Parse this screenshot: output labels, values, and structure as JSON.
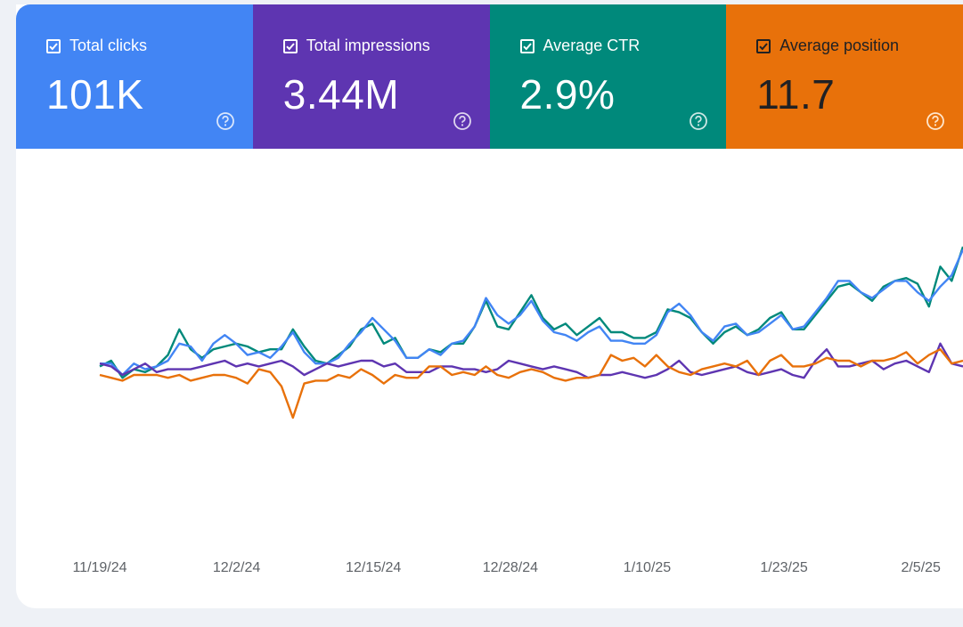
{
  "metrics": [
    {
      "label": "Total clicks",
      "value": "101K",
      "color": "#4285f4",
      "checked": true
    },
    {
      "label": "Total impressions",
      "value": "3.44M",
      "color": "#5e35b1",
      "checked": true
    },
    {
      "label": "Average CTR",
      "value": "2.9%",
      "color": "#00897b",
      "checked": true
    },
    {
      "label": "Average position",
      "value": "11.7",
      "color": "#e8710a",
      "checked": true
    }
  ],
  "chart_data": {
    "type": "line",
    "x_tick_labels": [
      "11/19/24",
      "12/2/24",
      "12/15/24",
      "12/28/24",
      "1/10/25",
      "1/23/25",
      "2/5/25"
    ],
    "x_ticks": [
      "2024-11-19",
      "2024-12-02",
      "2024-12-15",
      "2024-12-28",
      "2025-01-10",
      "2025-01-23",
      "2025-02-05"
    ],
    "x_start": "2024-11-19",
    "x_end": "2025-02-09",
    "grid": false,
    "y_axis_labels_visible": false,
    "series": [
      {
        "color": "#00897b",
        "values_relative": [
          0.58,
          0.6,
          0.54,
          0.57,
          0.56,
          0.58,
          0.62,
          0.71,
          0.64,
          0.61,
          0.64,
          0.65,
          0.66,
          0.65,
          0.63,
          0.64,
          0.64,
          0.71,
          0.65,
          0.6,
          0.59,
          0.62,
          0.65,
          0.71,
          0.73,
          0.66,
          0.68,
          0.61,
          0.61,
          0.64,
          0.63,
          0.66,
          0.66,
          0.72,
          0.81,
          0.72,
          0.71,
          0.77,
          0.83,
          0.75,
          0.71,
          0.73,
          0.69,
          0.72,
          0.75,
          0.7,
          0.7,
          0.68,
          0.68,
          0.7,
          0.78,
          0.77,
          0.75,
          0.7,
          0.66,
          0.7,
          0.72,
          0.69,
          0.71,
          0.75,
          0.77,
          0.71,
          0.71,
          0.76,
          0.81,
          0.86,
          0.87,
          0.84,
          0.81,
          0.86,
          0.88,
          0.89,
          0.87,
          0.79,
          0.93,
          0.88,
          1.0
        ]
      },
      {
        "color": "#4285f4",
        "values_relative": [
          0.59,
          0.59,
          0.55,
          0.59,
          0.57,
          0.58,
          0.6,
          0.66,
          0.65,
          0.6,
          0.66,
          0.69,
          0.66,
          0.62,
          0.63,
          0.61,
          0.65,
          0.7,
          0.63,
          0.59,
          0.59,
          0.61,
          0.66,
          0.7,
          0.75,
          0.71,
          0.67,
          0.61,
          0.61,
          0.64,
          0.62,
          0.66,
          0.67,
          0.72,
          0.82,
          0.76,
          0.73,
          0.76,
          0.81,
          0.74,
          0.7,
          0.69,
          0.67,
          0.7,
          0.72,
          0.67,
          0.67,
          0.66,
          0.66,
          0.69,
          0.77,
          0.8,
          0.76,
          0.7,
          0.67,
          0.72,
          0.73,
          0.69,
          0.7,
          0.73,
          0.76,
          0.71,
          0.72,
          0.77,
          0.82,
          0.88,
          0.88,
          0.84,
          0.82,
          0.85,
          0.88,
          0.88,
          0.84,
          0.81,
          0.86,
          0.9,
          0.99
        ]
      },
      {
        "color": "#5e35b1",
        "values_relative": [
          0.59,
          0.58,
          0.55,
          0.57,
          0.59,
          0.56,
          0.57,
          0.57,
          0.57,
          0.58,
          0.59,
          0.6,
          0.58,
          0.59,
          0.58,
          0.59,
          0.6,
          0.58,
          0.55,
          0.57,
          0.59,
          0.58,
          0.59,
          0.6,
          0.6,
          0.58,
          0.59,
          0.56,
          0.56,
          0.56,
          0.58,
          0.58,
          0.57,
          0.57,
          0.56,
          0.57,
          0.6,
          0.59,
          0.58,
          0.57,
          0.58,
          0.57,
          0.56,
          0.54,
          0.55,
          0.55,
          0.56,
          0.55,
          0.54,
          0.55,
          0.57,
          0.6,
          0.56,
          0.55,
          0.56,
          0.57,
          0.58,
          0.56,
          0.55,
          0.56,
          0.57,
          0.55,
          0.54,
          0.6,
          0.64,
          0.58,
          0.58,
          0.59,
          0.6,
          0.57,
          0.59,
          0.6,
          0.58,
          0.56,
          0.66,
          0.59,
          0.58
        ]
      },
      {
        "color": "#e8710a",
        "values_relative": [
          0.55,
          0.54,
          0.53,
          0.55,
          0.55,
          0.55,
          0.54,
          0.55,
          0.53,
          0.54,
          0.55,
          0.55,
          0.54,
          0.52,
          0.57,
          0.56,
          0.51,
          0.4,
          0.52,
          0.53,
          0.53,
          0.55,
          0.54,
          0.57,
          0.55,
          0.52,
          0.55,
          0.54,
          0.54,
          0.58,
          0.58,
          0.55,
          0.56,
          0.55,
          0.58,
          0.55,
          0.54,
          0.56,
          0.57,
          0.56,
          0.54,
          0.53,
          0.54,
          0.54,
          0.55,
          0.62,
          0.6,
          0.61,
          0.58,
          0.62,
          0.58,
          0.56,
          0.55,
          0.57,
          0.58,
          0.59,
          0.58,
          0.6,
          0.55,
          0.6,
          0.62,
          0.58,
          0.58,
          0.59,
          0.61,
          0.6,
          0.6,
          0.58,
          0.6,
          0.6,
          0.61,
          0.63,
          0.59,
          0.62,
          0.64,
          0.59,
          0.6
        ]
      }
    ]
  }
}
